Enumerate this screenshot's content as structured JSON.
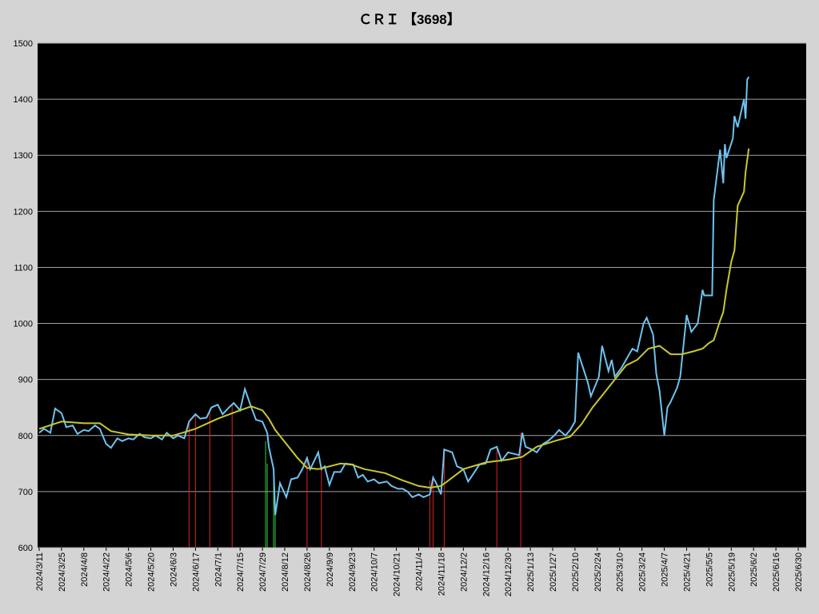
{
  "chart_data": {
    "type": "line",
    "title": "ＣＲＩ 【3698】",
    "xlim": [
      "2024/3/10",
      "2025/7/5"
    ],
    "ylim": [
      600,
      1500
    ],
    "yticks": [
      600,
      700,
      800,
      900,
      1000,
      1100,
      1200,
      1300,
      1400,
      1500
    ],
    "xticks": [
      "2024/3/11",
      "2024/3/25",
      "2024/4/8",
      "2024/4/22",
      "2024/5/6",
      "2024/5/20",
      "2024/6/3",
      "2024/6/17",
      "2024/7/1",
      "2024/7/15",
      "2024/7/29",
      "2024/8/12",
      "2024/8/26",
      "2024/9/9",
      "2024/9/23",
      "2024/10/7",
      "2024/10/21",
      "2024/11/4",
      "2024/11/18",
      "2024/12/2",
      "2024/12/16",
      "2024/12/30",
      "2025/1/13",
      "2025/1/27",
      "2025/2/10",
      "2025/2/24",
      "2025/3/10",
      "2025/3/24",
      "2025/4/7",
      "2025/4/21",
      "2025/5/5",
      "2025/5/19",
      "2025/6/2",
      "2025/6/16",
      "2025/6/30"
    ],
    "grid": true,
    "series": [
      {
        "color": "#6ec3f0",
        "x": [
          "2024/3/11",
          "2024/3/14",
          "2024/3/18",
          "2024/3/21",
          "2024/3/25",
          "2024/3/28",
          "2024/4/1",
          "2024/4/4",
          "2024/4/8",
          "2024/4/11",
          "2024/4/15",
          "2024/4/18",
          "2024/4/22",
          "2024/4/25",
          "2024/4/29",
          "2024/5/2",
          "2024/5/6",
          "2024/5/9",
          "2024/5/13",
          "2024/5/16",
          "2024/5/20",
          "2024/5/23",
          "2024/5/27",
          "2024/5/30",
          "2024/6/3",
          "2024/6/6",
          "2024/6/10",
          "2024/6/13",
          "2024/6/17",
          "2024/6/20",
          "2024/6/24",
          "2024/6/27",
          "2024/7/1",
          "2024/7/4",
          "2024/7/8",
          "2024/7/11",
          "2024/7/15",
          "2024/7/18",
          "2024/7/22",
          "2024/7/25",
          "2024/7/29",
          "2024/8/1",
          "2024/8/2",
          "2024/8/5",
          "2024/8/6",
          "2024/8/9",
          "2024/8/13",
          "2024/8/16",
          "2024/8/20",
          "2024/8/23",
          "2024/8/26",
          "2024/8/28",
          "2024/9/2",
          "2024/9/4",
          "2024/9/6",
          "2024/9/9",
          "2024/9/12",
          "2024/9/16",
          "2024/9/19",
          "2024/9/24",
          "2024/9/27",
          "2024/9/30",
          "2024/10/3",
          "2024/10/7",
          "2024/10/10",
          "2024/10/15",
          "2024/10/18",
          "2024/10/22",
          "2024/10/25",
          "2024/10/28",
          "2024/10/31",
          "2024/11/4",
          "2024/11/7",
          "2024/11/11",
          "2024/11/13",
          "2024/11/15",
          "2024/11/18",
          "2024/11/20",
          "2024/11/25",
          "2024/11/28",
          "2024/12/2",
          "2024/12/5",
          "2024/12/9",
          "2024/12/12",
          "2024/12/16",
          "2024/12/19",
          "2024/12/23",
          "2024/12/26",
          "2024/12/30",
          "2025/1/6",
          "2025/1/8",
          "2025/1/10",
          "2025/1/14",
          "2025/1/17",
          "2025/1/21",
          "2025/1/24",
          "2025/1/28",
          "2025/1/31",
          "2025/2/4",
          "2025/2/7",
          "2025/2/10",
          "2025/2/12",
          "2025/2/14",
          "2025/2/18",
          "2025/2/20",
          "2025/2/25",
          "2025/2/27",
          "2025/3/3",
          "2025/3/5",
          "2025/3/7",
          "2025/3/11",
          "2025/3/14",
          "2025/3/18",
          "2025/3/21",
          "2025/3/25",
          "2025/3/27",
          "2025/3/31",
          "2025/4/2",
          "2025/4/4",
          "2025/4/7",
          "2025/4/9",
          "2025/4/11",
          "2025/4/15",
          "2025/4/17",
          "2025/4/21",
          "2025/4/24",
          "2025/4/28",
          "2025/5/1",
          "2025/5/2",
          "2025/5/7",
          "2025/5/8",
          "2025/5/12",
          "2025/5/14",
          "2025/5/15",
          "2025/5/16",
          "2025/5/20",
          "2025/5/21",
          "2025/5/23",
          "2025/5/27",
          "2025/5/28",
          "2025/5/29",
          "2025/5/30"
        ],
        "values": [
          805,
          812,
          805,
          848,
          840,
          815,
          818,
          803,
          810,
          808,
          818,
          812,
          785,
          778,
          795,
          790,
          795,
          793,
          803,
          797,
          795,
          800,
          793,
          805,
          795,
          800,
          795,
          825,
          838,
          830,
          832,
          850,
          855,
          838,
          850,
          858,
          845,
          883,
          850,
          828,
          825,
          805,
          780,
          740,
          658,
          715,
          690,
          722,
          725,
          740,
          760,
          740,
          770,
          740,
          745,
          712,
          735,
          735,
          750,
          748,
          725,
          730,
          718,
          722,
          715,
          718,
          710,
          705,
          705,
          700,
          690,
          695,
          690,
          695,
          725,
          715,
          695,
          775,
          770,
          745,
          740,
          718,
          735,
          748,
          750,
          775,
          780,
          755,
          770,
          765,
          805,
          780,
          775,
          770,
          785,
          790,
          800,
          810,
          800,
          810,
          825,
          948,
          930,
          895,
          870,
          905,
          960,
          915,
          935,
          905,
          920,
          935,
          955,
          950,
          1000,
          1010,
          980,
          910,
          880,
          800,
          850,
          860,
          885,
          905,
          1015,
          985,
          1000,
          1060,
          1050,
          1050,
          1220,
          1310,
          1250,
          1320,
          1295,
          1330,
          1370,
          1350,
          1400,
          1365,
          1435,
          1440
        ]
      },
      {
        "color": "#c8c832",
        "x": [
          "2024/3/11",
          "2024/3/25",
          "2024/4/8",
          "2024/4/18",
          "2024/4/25",
          "2024/5/6",
          "2024/5/20",
          "2024/6/3",
          "2024/6/17",
          "2024/7/1",
          "2024/7/15",
          "2024/7/22",
          "2024/7/29",
          "2024/8/2",
          "2024/8/6",
          "2024/8/13",
          "2024/8/20",
          "2024/8/26",
          "2024/9/2",
          "2024/9/9",
          "2024/9/16",
          "2024/9/23",
          "2024/10/1",
          "2024/10/14",
          "2024/10/25",
          "2024/11/4",
          "2024/11/11",
          "2024/11/18",
          "2024/11/25",
          "2024/12/2",
          "2024/12/16",
          "2024/12/30",
          "2025/1/8",
          "2025/1/17",
          "2025/1/28",
          "2025/2/7",
          "2025/2/14",
          "2025/2/21",
          "2025/2/28",
          "2025/3/7",
          "2025/3/14",
          "2025/3/21",
          "2025/3/28",
          "2025/4/4",
          "2025/4/11",
          "2025/4/18",
          "2025/4/25",
          "2025/5/1",
          "2025/5/5",
          "2025/5/8",
          "2025/5/12",
          "2025/5/14",
          "2025/5/16",
          "2025/5/19",
          "2025/5/21",
          "2025/5/23",
          "2025/5/27",
          "2025/5/28",
          "2025/5/30"
        ],
        "values": [
          812,
          825,
          822,
          822,
          808,
          802,
          800,
          800,
          812,
          830,
          845,
          852,
          845,
          830,
          810,
          785,
          760,
          742,
          740,
          745,
          750,
          748,
          740,
          733,
          720,
          710,
          707,
          710,
          725,
          740,
          752,
          757,
          762,
          780,
          790,
          798,
          820,
          850,
          875,
          900,
          925,
          935,
          955,
          960,
          945,
          945,
          950,
          955,
          965,
          970,
          1005,
          1020,
          1060,
          1110,
          1130,
          1210,
          1235,
          1270,
          1312
        ]
      }
    ],
    "markers": [
      {
        "color": "#e02020",
        "x": [
          "2024/6/13",
          "2024/6/17",
          "2024/6/26",
          "2024/7/10",
          "2024/8/26",
          "2024/9/4",
          "2024/11/11",
          "2024/11/13",
          "2024/11/20",
          "2024/12/23",
          "2025/1/7"
        ],
        "values": [
          825,
          838,
          848,
          855,
          760,
          740,
          720,
          728,
          775,
          780,
          805
        ]
      },
      {
        "color": "#33cc33",
        "x": [
          "2024/7/31",
          "2024/8/1",
          "2024/8/5",
          "2024/8/6"
        ],
        "values": [
          790,
          750,
          740,
          658
        ]
      }
    ]
  }
}
